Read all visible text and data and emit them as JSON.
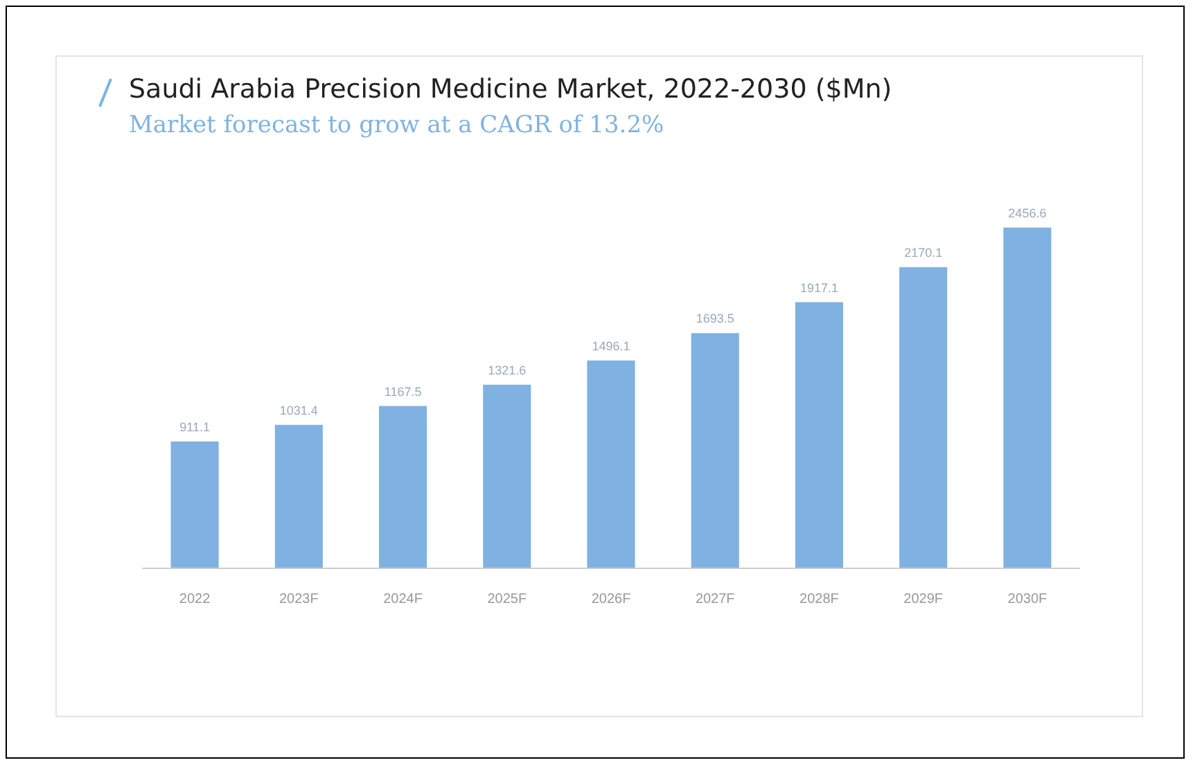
{
  "chart_data": {
    "type": "bar",
    "title": "Saudi Arabia Precision Medicine Market, 2022-2030 ($Mn)",
    "subtitle": "Market forecast to grow at a CAGR of 13.2%",
    "categories": [
      "2022",
      "2023F",
      "2024F",
      "2025F",
      "2026F",
      "2027F",
      "2028F",
      "2029F",
      "2030F"
    ],
    "values": [
      911.1,
      1031.4,
      1167.5,
      1321.6,
      1496.1,
      1693.5,
      1917.1,
      2170.1,
      2456.6
    ],
    "color": "#7fb2e2",
    "data_labels": true
  }
}
